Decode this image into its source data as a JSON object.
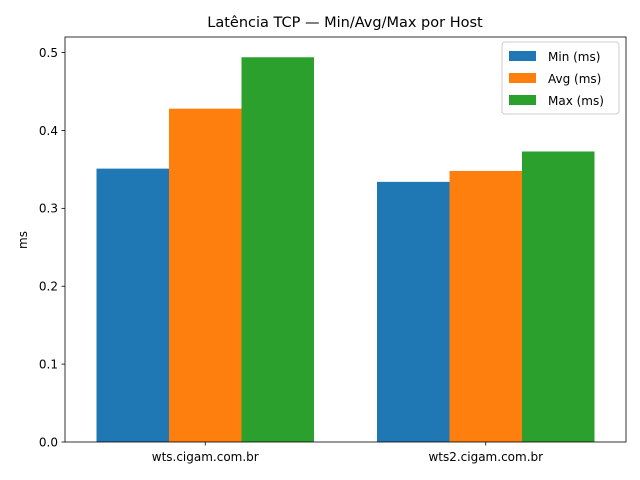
{
  "chart_data": {
    "type": "bar",
    "title": "Latência TCP — Min/Avg/Max por Host",
    "xlabel": "",
    "ylabel": "ms",
    "ylim": [
      0,
      0.52
    ],
    "yticks": [
      0.0,
      0.1,
      0.2,
      0.3,
      0.4,
      0.5
    ],
    "ytick_labels": [
      "0.0",
      "0.1",
      "0.2",
      "0.3",
      "0.4",
      "0.5"
    ],
    "categories": [
      "wts.cigam.com.br",
      "wts2.cigam.com.br"
    ],
    "series": [
      {
        "name": "Min (ms)",
        "color": "#1f77b4",
        "values": [
          0.351,
          0.334
        ]
      },
      {
        "name": "Avg (ms)",
        "color": "#ff7f0e",
        "values": [
          0.428,
          0.348
        ]
      },
      {
        "name": "Max (ms)",
        "color": "#2ca02c",
        "values": [
          0.494,
          0.373
        ]
      }
    ],
    "grid": false,
    "legend_position": "top-right"
  }
}
